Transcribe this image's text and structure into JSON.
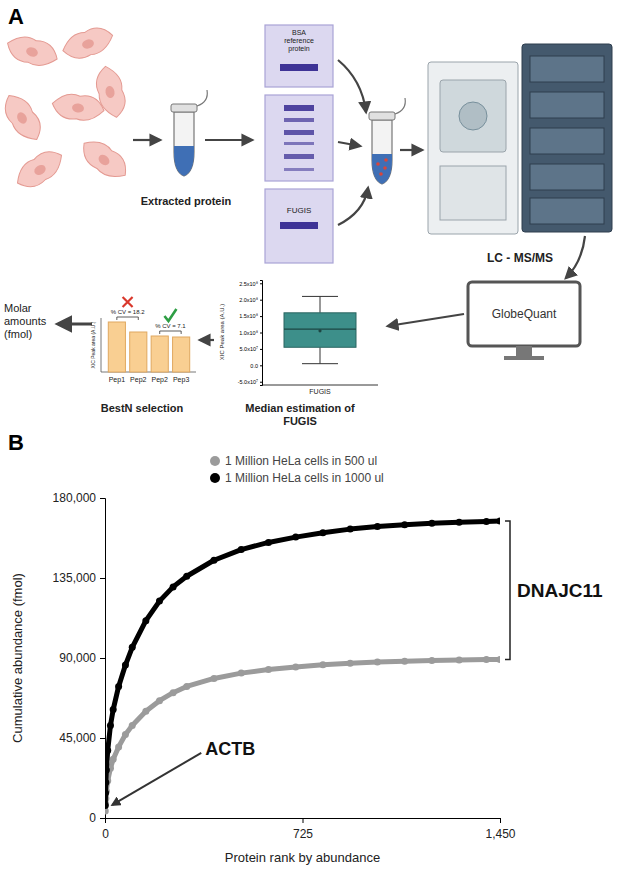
{
  "panels": [
    "A",
    "B"
  ],
  "diagram": {
    "extracted_protein": "Extracted protein",
    "bsa_label": [
      "BSA",
      "reference",
      "protein"
    ],
    "fugis_gel": "FUGIS",
    "instrument": "LC - MS/MS",
    "software": "GlobeQuant",
    "median_step": [
      "Median estimation of",
      "FUGIS"
    ],
    "bestn_step": "BestN selection",
    "output": [
      "Molar",
      "amounts",
      "(fmol)"
    ],
    "boxplot": {
      "y_label": "XIC Peak area (A.U.)",
      "category": "FUGIS",
      "ylim": [
        -60000000,
        260000000
      ],
      "yticks": [
        {
          "value": -50000000,
          "label": "-5.0x10⁷"
        },
        {
          "value": 0,
          "label": "0.0"
        },
        {
          "value": 50000000,
          "label": "5.0x10⁷"
        },
        {
          "value": 100000000,
          "label": "1.0x10⁸"
        },
        {
          "value": 150000000,
          "label": "1.5x10⁸"
        },
        {
          "value": 200000000,
          "label": "2.0x10⁸"
        },
        {
          "value": 250000000,
          "label": "2.5x10⁸"
        }
      ],
      "whisker_low": 5000000,
      "q1": 55000000,
      "median": 110000000,
      "q3": 160000000,
      "whisker_high": 210000000,
      "mean": 105000000
    },
    "bestn_chart": {
      "y_label": "XIC Peak area (A.U.)",
      "categories": [
        "Pep1",
        "Pep2",
        "Pep2",
        "Pep3"
      ],
      "values": [
        1.0,
        0.8,
        0.72,
        0.7
      ],
      "cv_labels": [
        "% CV = 18.2",
        "% CV = 7.1"
      ]
    }
  },
  "chart_data": {
    "type": "line",
    "x_label": "Protein rank by abundance",
    "y_label": "Cumulative abundance (fmol)",
    "x": [
      1,
      2,
      3,
      5,
      10,
      20,
      30,
      50,
      75,
      100,
      150,
      200,
      250,
      300,
      400,
      500,
      600,
      700,
      800,
      900,
      1000,
      1100,
      1200,
      1300,
      1400,
      1450
    ],
    "xlim": [
      0,
      1450
    ],
    "xticks": [
      0,
      725,
      {
        "value": 1450,
        "label": "1,450"
      }
    ],
    "ylim": [
      0,
      180000
    ],
    "yticks": [
      0,
      {
        "value": 45000,
        "label": "45,000"
      },
      {
        "value": 90000,
        "label": "90,000"
      },
      {
        "value": 135000,
        "label": "135,000"
      },
      {
        "value": 180000,
        "label": "180,000"
      }
    ],
    "series": [
      {
        "name": "1 Million HeLa cells in 500 ul",
        "color": "#9b9b9b",
        "marker": "circle",
        "values": [
          4000,
          8000,
          11000,
          15000,
          21000,
          28000,
          33000,
          40000,
          47000,
          52000,
          60000,
          66000,
          70500,
          74000,
          78500,
          81500,
          83500,
          85000,
          86200,
          87000,
          87700,
          88200,
          88600,
          88900,
          89100,
          89200
        ]
      },
      {
        "name": "1 Million HeLa cells in 1000 ul",
        "color": "#000000",
        "marker": "circle",
        "values": [
          7000,
          14000,
          20000,
          27000,
          38000,
          52000,
          61000,
          74000,
          86000,
          96000,
          111000,
          122000,
          130000,
          136000,
          145000,
          151000,
          155000,
          158000,
          160500,
          162500,
          164000,
          165000,
          165800,
          166400,
          166800,
          167000
        ]
      }
    ],
    "legend": "top",
    "grid": false,
    "annotations": [
      {
        "text": "ACTB"
      },
      {
        "text": "DNAJC11"
      }
    ]
  }
}
